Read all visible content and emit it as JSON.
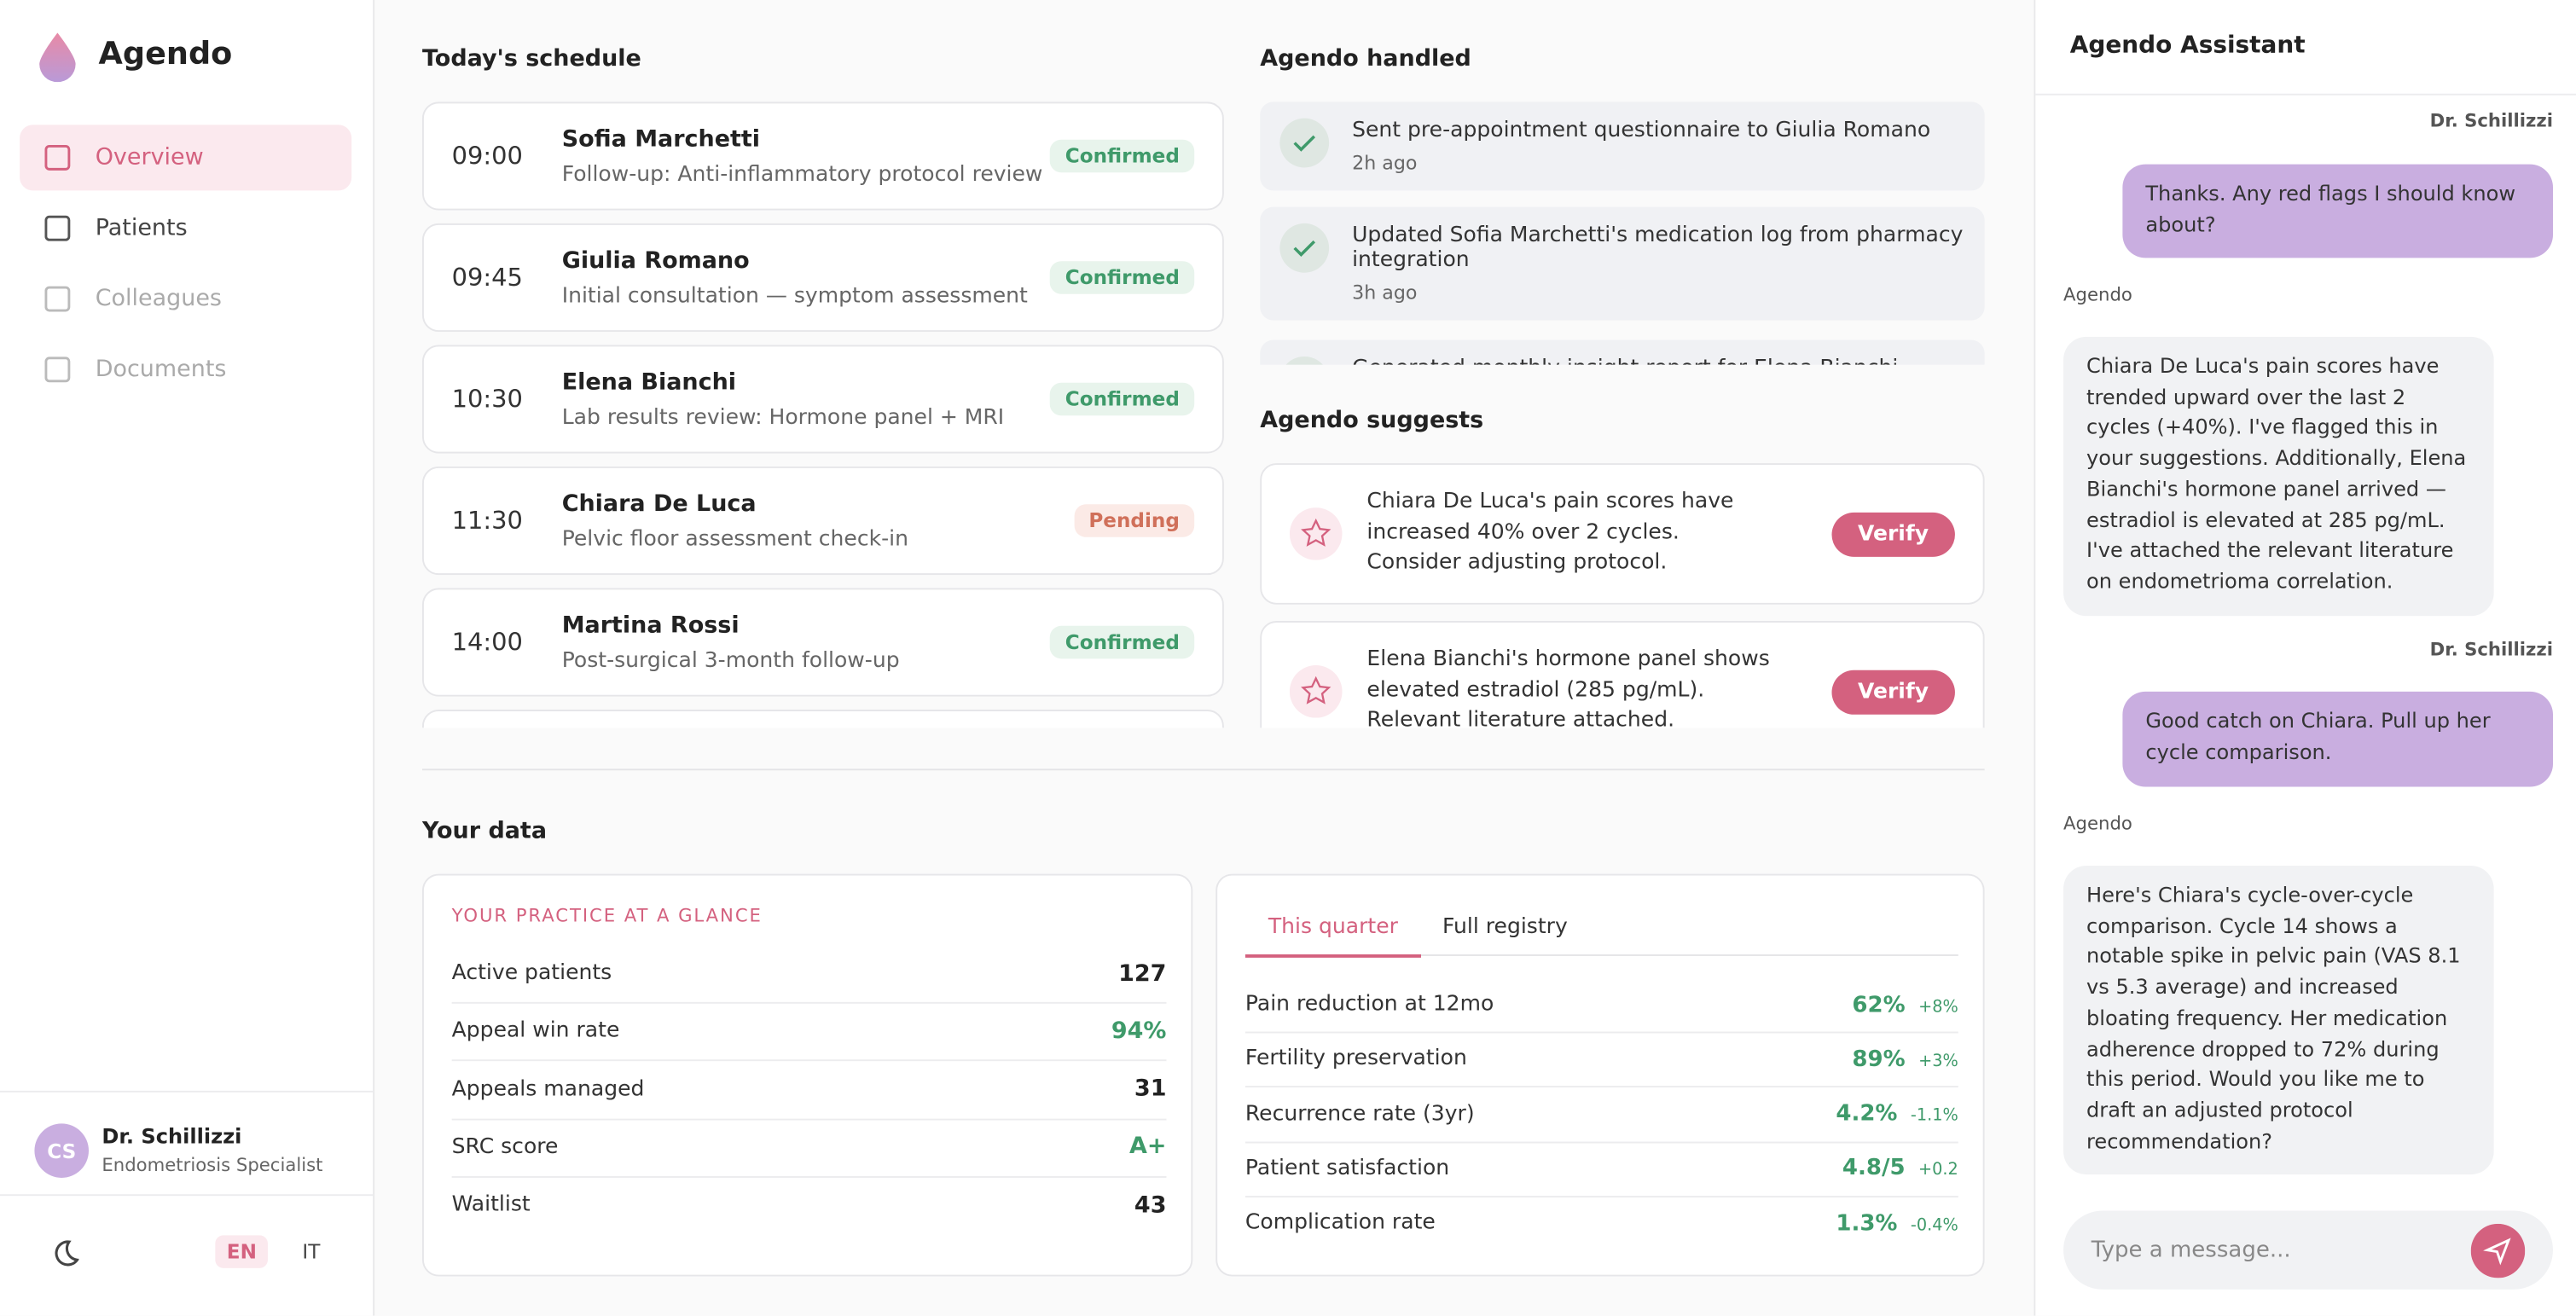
{
  "brand": "Agendo",
  "nav": [
    "Overview",
    "Patients",
    "Colleagues",
    "Documents"
  ],
  "user": {
    "initials": "CS",
    "name": "Dr. Schillizzi",
    "role": "Endometriosis Specialist"
  },
  "languages": [
    "EN",
    "IT"
  ],
  "schedule": {
    "title": "Today's schedule",
    "items": [
      {
        "time": "09:00",
        "name": "Sofia Marchetti",
        "desc": "Follow-up: Anti-inflammatory protocol review",
        "status": "Confirmed"
      },
      {
        "time": "09:45",
        "name": "Giulia Romano",
        "desc": "Initial consultation — symptom assessment",
        "status": "Confirmed"
      },
      {
        "time": "10:30",
        "name": "Elena Bianchi",
        "desc": "Lab results review: Hormone panel + MRI",
        "status": "Confirmed"
      },
      {
        "time": "11:30",
        "name": "Chiara De Luca",
        "desc": "Pelvic floor assessment check-in",
        "status": "Pending"
      },
      {
        "time": "14:00",
        "name": "Martina Rossi",
        "desc": "Post-surgical 3-month follow-up",
        "status": "Confirmed"
      }
    ]
  },
  "handled": {
    "title": "Agendo handled",
    "items": [
      {
        "text": "Sent pre-appointment questionnaire to Giulia Romano",
        "time": "2h ago"
      },
      {
        "text": "Updated Sofia Marchetti's medication log from pharmacy integration",
        "time": "3h ago"
      },
      {
        "text": "Generated monthly insight report for Elena Bianchi"
      }
    ]
  },
  "suggests": {
    "title": "Agendo suggests",
    "items": [
      {
        "text": "Chiara De Luca's pain scores have increased 40% over 2 cycles. Consider adjusting protocol.",
        "action": "Verify"
      },
      {
        "text": "Elena Bianchi's hormone panel shows elevated estradiol (285 pg/mL). Relevant literature attached.",
        "action": "Verify"
      }
    ]
  },
  "data": {
    "title": "Your data",
    "glance": {
      "title": "YOUR PRACTICE AT A GLANCE",
      "rows": [
        {
          "label": "Active patients",
          "value": "127"
        },
        {
          "label": "Appeal win rate",
          "value": "94%"
        },
        {
          "label": "Appeals managed",
          "value": "31"
        },
        {
          "label": "SRC score",
          "value": "A+"
        },
        {
          "label": "Waitlist",
          "value": "43"
        }
      ]
    },
    "tabs": [
      "This quarter",
      "Full registry"
    ],
    "metrics": [
      {
        "label": "Pain reduction at 12mo",
        "value": "62%",
        "change": "+8%"
      },
      {
        "label": "Fertility preservation",
        "value": "89%",
        "change": "+3%"
      },
      {
        "label": "Recurrence rate (3yr)",
        "value": "4.2%",
        "change": "-1.1%"
      },
      {
        "label": "Patient satisfaction",
        "value": "4.8/5",
        "change": "+0.2"
      },
      {
        "label": "Complication rate",
        "value": "1.3%",
        "change": "-0.4%"
      }
    ]
  },
  "chat": {
    "title": "Agendo Assistant",
    "messages": [
      {
        "sender": "Dr. Schillizzi",
        "text": "Thanks. Any red flags I should know about?"
      },
      {
        "sender": "Agendo",
        "text": "Chiara De Luca's pain scores have trended upward over the last 2 cycles (+40%). I've flagged this in your suggestions. Additionally, Elena Bianchi's hormone panel arrived — estradiol is elevated at 285 pg/mL. I've attached the relevant literature on endometrioma correlation."
      },
      {
        "sender": "Dr. Schillizzi",
        "text": "Good catch on Chiara. Pull up her cycle comparison."
      },
      {
        "sender": "Agendo",
        "text": "Here's Chiara's cycle-over-cycle comparison. Cycle 14 shows a notable spike in pelvic pain (VAS 8.1 vs 5.3 average) and increased bloating frequency. Her medication adherence dropped to 72% during this period. Would you like me to draft an adjusted protocol recommendation?"
      }
    ],
    "placeholder": "Type a message..."
  }
}
